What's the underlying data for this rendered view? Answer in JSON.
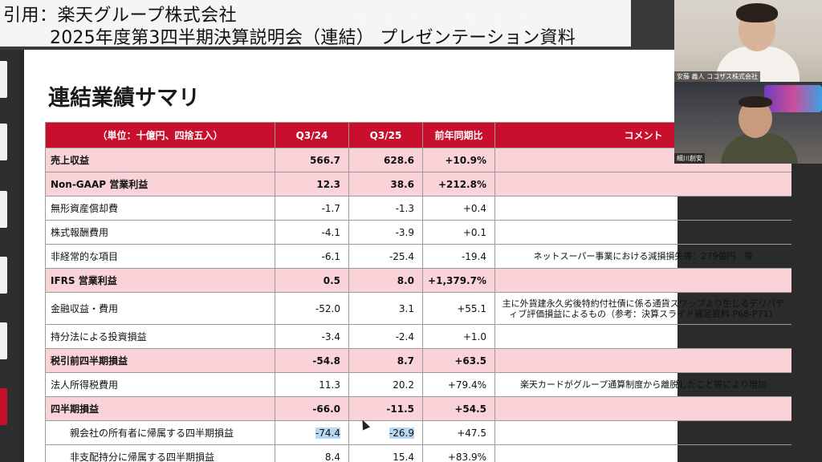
{
  "citation": {
    "line1": "引用：楽天グループ株式会社",
    "line2": "2025年度第3四半期決算説明会（連結） プレゼンテーション資料"
  },
  "slide": {
    "title": "連結業績サマリ",
    "table": {
      "headers": [
        "（単位：十億円、四捨五入）",
        "Q3/24",
        "Q3/25",
        "前年同期比",
        "コメント"
      ],
      "rows": [
        {
          "label": "売上収益",
          "q3_24": "566.7",
          "q3_25": "628.6",
          "yoy": "+10.9%",
          "comment": ""
        },
        {
          "label": "Non-GAAP 営業利益",
          "q3_24": "12.3",
          "q3_25": "38.6",
          "yoy": "+212.8%",
          "comment": ""
        },
        {
          "label": "無形資産償却費",
          "q3_24": "-1.7",
          "q3_25": "-1.3",
          "yoy": "+0.4",
          "comment": ""
        },
        {
          "label": "株式報酬費用",
          "q3_24": "-4.1",
          "q3_25": "-3.9",
          "yoy": "+0.1",
          "comment": ""
        },
        {
          "label": "非経常的な項目",
          "q3_24": "-6.1",
          "q3_25": "-25.4",
          "yoy": "-19.4",
          "comment": "ネットスーパー事業における減損損失等：279億円　等"
        },
        {
          "label": "IFRS 営業利益",
          "q3_24": "0.5",
          "q3_25": "8.0",
          "yoy": "+1,379.7%",
          "comment": ""
        },
        {
          "label": "金融収益・費用",
          "q3_24": "-52.0",
          "q3_25": "3.1",
          "yoy": "+55.1",
          "comment": "主に外貨建永久劣後特約付社債に係る通貨スワップより生じるデリバティブ評価損益によるもの（参考：決算スライド補足資料 P68-P71）"
        },
        {
          "label": "持分法による投資損益",
          "q3_24": "-3.4",
          "q3_25": "-2.4",
          "yoy": "+1.0",
          "comment": ""
        },
        {
          "label": "税引前四半期損益",
          "q3_24": "-54.8",
          "q3_25": "8.7",
          "yoy": "+63.5",
          "comment": ""
        },
        {
          "label": "法人所得税費用",
          "q3_24": "11.3",
          "q3_25": "20.2",
          "yoy": "+79.4%",
          "comment": "楽天カードがグループ通算制度から離脱したこと等により増加"
        },
        {
          "label": "四半期損益",
          "q3_24": "-66.0",
          "q3_25": "-11.5",
          "yoy": "+54.5",
          "comment": ""
        },
        {
          "label": "親会社の所有者に帰属する四半期損益",
          "q3_24": "-74.4",
          "q3_25": "-26.9",
          "yoy": "+47.5",
          "comment": ""
        },
        {
          "label": "非支配持分に帰属する四半期損益",
          "q3_24": "8.4",
          "q3_25": "15.4",
          "yoy": "+83.9%",
          "comment": ""
        }
      ]
    }
  },
  "participants": [
    {
      "name": "安藤 義人",
      "org": "ココザス株式会社"
    },
    {
      "name": "細川創安"
    }
  ],
  "colors": {
    "header_red": "#c8102e",
    "highlight_pink": "#f9d3d8",
    "selection_blue": "#b8d7f5"
  }
}
